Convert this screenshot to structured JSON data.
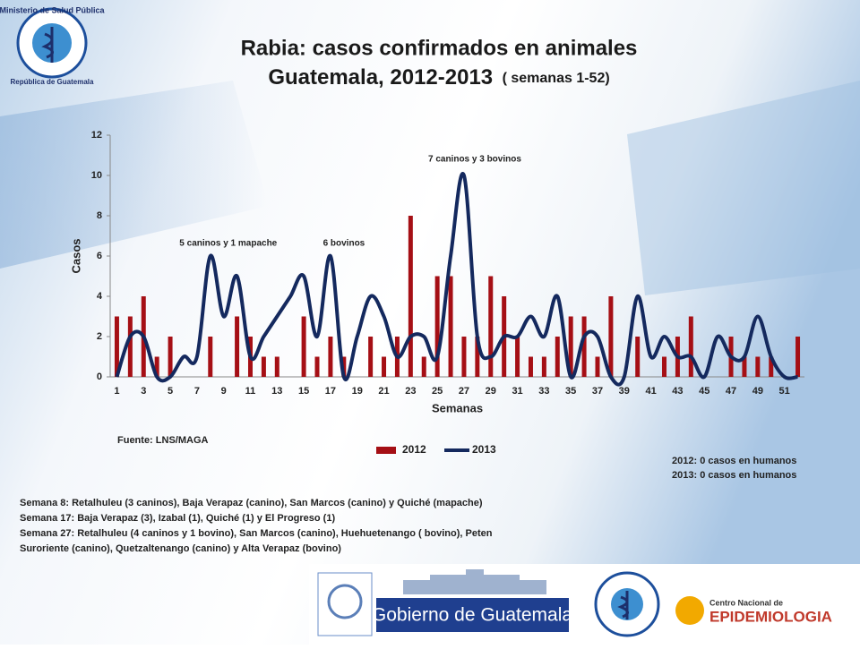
{
  "chart_data": {
    "type": "bar-line",
    "title": "Rabia: casos confirmados en animales",
    "subtitle": "Guatemala, 2012-2013",
    "subtitle_note": "( semanas 1-52)",
    "x_label": "Semanas",
    "y_label": "Casos",
    "categories": [
      "1",
      null,
      "3",
      null,
      "5",
      null,
      "7",
      null,
      "9",
      null,
      "11",
      null,
      "13",
      null,
      "15",
      null,
      "17",
      null,
      "19",
      null,
      "21",
      null,
      "23",
      null,
      "25",
      null,
      "27",
      null,
      "29",
      null,
      "31",
      null,
      "33",
      null,
      "35",
      null,
      "37",
      null,
      "39",
      null,
      "41",
      null,
      "43",
      null,
      "45",
      null,
      "47",
      null,
      "49",
      null,
      "51",
      null
    ],
    "series": [
      {
        "name": "2012",
        "type": "bar",
        "color": "#a50f15",
        "values": [
          3,
          3,
          4,
          1,
          2,
          0,
          0,
          2,
          0,
          3,
          2,
          1,
          1,
          0,
          3,
          1,
          2,
          1,
          0,
          2,
          1,
          2,
          8,
          1,
          5,
          5,
          2,
          2,
          5,
          4,
          2,
          1,
          1,
          2,
          3,
          3,
          1,
          4,
          0,
          2,
          0,
          1,
          2,
          3,
          0,
          0,
          2,
          1,
          1,
          1,
          0,
          2
        ]
      },
      {
        "name": "2013",
        "type": "line",
        "color": "#14295e",
        "values": [
          0,
          2,
          2,
          0,
          0,
          1,
          1,
          6,
          3,
          5,
          1,
          2,
          3,
          4,
          5,
          2,
          6,
          0,
          2,
          4,
          3,
          1,
          2,
          2,
          1,
          6,
          10,
          2,
          1,
          2,
          2,
          3,
          2,
          4,
          0,
          2,
          2,
          0,
          0,
          4,
          1,
          2,
          1,
          1,
          0,
          2,
          1,
          1,
          3,
          1,
          0,
          0
        ]
      }
    ],
    "ylim": [
      0,
      12
    ],
    "yticks": [
      0,
      2,
      4,
      6,
      8,
      10,
      12
    ],
    "legend": "bottom",
    "annotations": [
      {
        "text": "5 caninos y 1 mapache",
        "week": 8
      },
      {
        "text": "6 bovinos",
        "week": 17
      },
      {
        "text": "7 caninos y 3 bovinos",
        "week": 27
      }
    ]
  },
  "slide": {
    "source": "Fuente: LNS/MAGA",
    "human_cases": [
      "2012: 0 casos en humanos",
      "2013: 0 casos en humanos"
    ],
    "notes": [
      "Semana 8: Retalhuleu (3 caninos), Baja Verapaz (canino), San Marcos (canino) y Quiché (mapache)",
      "Semana 17: Baja Verapaz (3), Izabal (1), Quiché (1) y El Progreso (1)",
      "Semana 27: Retalhuleu (4 caninos y 1 bovino), San Marcos (canino), Huehuetenango  ( bovino), Peten",
      "Suroriente (canino), Quetzaltenango  (canino) y Alta Verapaz (bovino)"
    ],
    "logo_ministry": [
      "Ministerio de Salud Pública",
      "República de Guatemala"
    ],
    "logo_government": "Gobierno de Guatemala",
    "logo_center": [
      "Centro Nacional de",
      "EPIDEMIOLOGIA"
    ]
  }
}
